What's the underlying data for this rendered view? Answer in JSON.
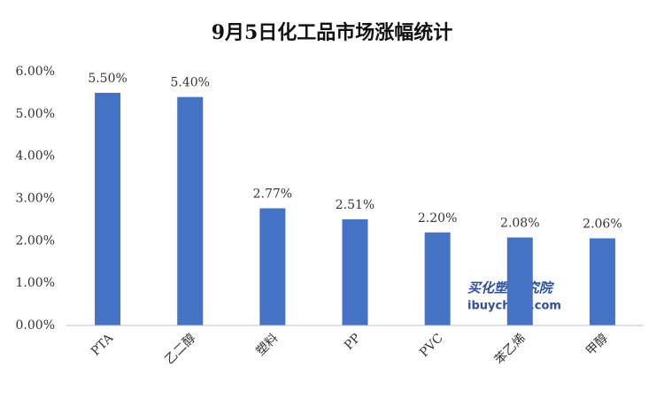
{
  "chart_data": {
    "type": "bar",
    "title": "9月5日化工品市场涨幅统计",
    "categories": [
      "PTA",
      "乙二醇",
      "塑料",
      "PP",
      "PVC",
      "苯乙烯",
      "甲醇"
    ],
    "values": [
      5.5,
      5.4,
      2.77,
      2.51,
      2.2,
      2.08,
      2.06
    ],
    "value_labels": [
      "5.50%",
      "5.40%",
      "2.77%",
      "2.51%",
      "2.20%",
      "2.08%",
      "2.06%"
    ],
    "color": "#4472c4",
    "ylim": [
      0,
      6
    ],
    "yticks": [
      {
        "value": 0,
        "label": "0.00%"
      },
      {
        "value": 1,
        "label": "1.00%"
      },
      {
        "value": 2,
        "label": "2.00%"
      },
      {
        "value": 3,
        "label": "3.00%"
      },
      {
        "value": 4,
        "label": "4.00%"
      },
      {
        "value": 5,
        "label": "5.00%"
      },
      {
        "value": 6,
        "label": "6.00%"
      }
    ],
    "grid": false,
    "annotations": [
      "买化塑·研究院",
      "ibuychem.com"
    ]
  }
}
